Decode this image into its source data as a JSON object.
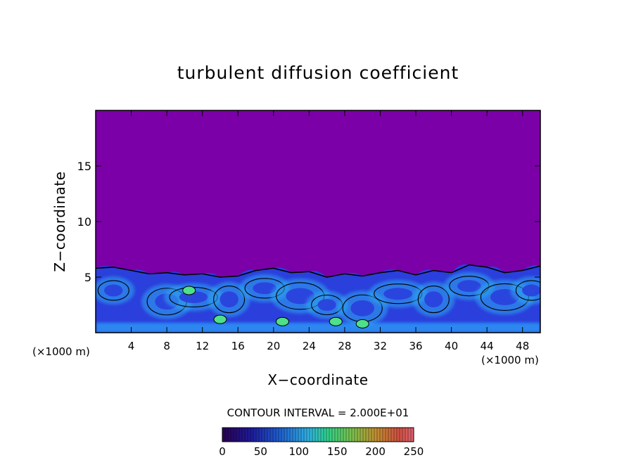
{
  "chart_data": {
    "type": "heatmap",
    "title": "turbulent diffusion coefficient",
    "xlabel": "X−coordinate",
    "ylabel": "Z−coordinate",
    "x_unit_left": "(×1000 m)",
    "x_unit_right": "(×1000 m)",
    "xlim": [
      0,
      50
    ],
    "ylim": [
      0,
      20
    ],
    "x_ticks": [
      4,
      8,
      12,
      16,
      20,
      24,
      28,
      32,
      36,
      40,
      44,
      48
    ],
    "y_ticks": [
      5,
      10,
      15
    ],
    "contour_interval_label": "CONTOUR INTERVAL = 2.000E+01",
    "colorbar": {
      "min": 0,
      "max": 250,
      "ticks": [
        0,
        50,
        100,
        150,
        200,
        250
      ]
    },
    "colors": {
      "background_field": "#7b00a8",
      "boundary_layer": "#2a3fdc",
      "high_values": "#2fb8ff",
      "peak": "#4fe08a"
    },
    "boundary_layer_top": [
      [
        0,
        5.8
      ],
      [
        2,
        5.9
      ],
      [
        4,
        5.6
      ],
      [
        6,
        5.3
      ],
      [
        8,
        5.4
      ],
      [
        10,
        5.2
      ],
      [
        12,
        5.3
      ],
      [
        14,
        5.0
      ],
      [
        16,
        5.1
      ],
      [
        18,
        5.6
      ],
      [
        20,
        5.8
      ],
      [
        22,
        5.4
      ],
      [
        24,
        5.5
      ],
      [
        26,
        5.0
      ],
      [
        28,
        5.3
      ],
      [
        30,
        5.1
      ],
      [
        32,
        5.4
      ],
      [
        34,
        5.6
      ],
      [
        36,
        5.2
      ],
      [
        38,
        5.6
      ],
      [
        40,
        5.4
      ],
      [
        42,
        6.1
      ],
      [
        44,
        5.9
      ],
      [
        46,
        5.4
      ],
      [
        48,
        5.6
      ],
      [
        50,
        6.0
      ]
    ],
    "eddy_centers": [
      [
        2,
        3.8
      ],
      [
        8,
        2.8
      ],
      [
        11,
        3.2
      ],
      [
        15,
        3.0
      ],
      [
        19,
        4.0
      ],
      [
        23,
        3.3
      ],
      [
        26,
        2.5
      ],
      [
        30,
        2.2
      ],
      [
        34,
        3.5
      ],
      [
        38,
        3.0
      ],
      [
        42,
        4.2
      ],
      [
        46,
        3.2
      ],
      [
        49,
        3.8
      ]
    ],
    "peak_regions": [
      [
        10.5,
        3.8
      ],
      [
        14,
        1.2
      ],
      [
        21,
        1.0
      ],
      [
        27,
        1.0
      ],
      [
        30,
        0.8
      ]
    ]
  }
}
